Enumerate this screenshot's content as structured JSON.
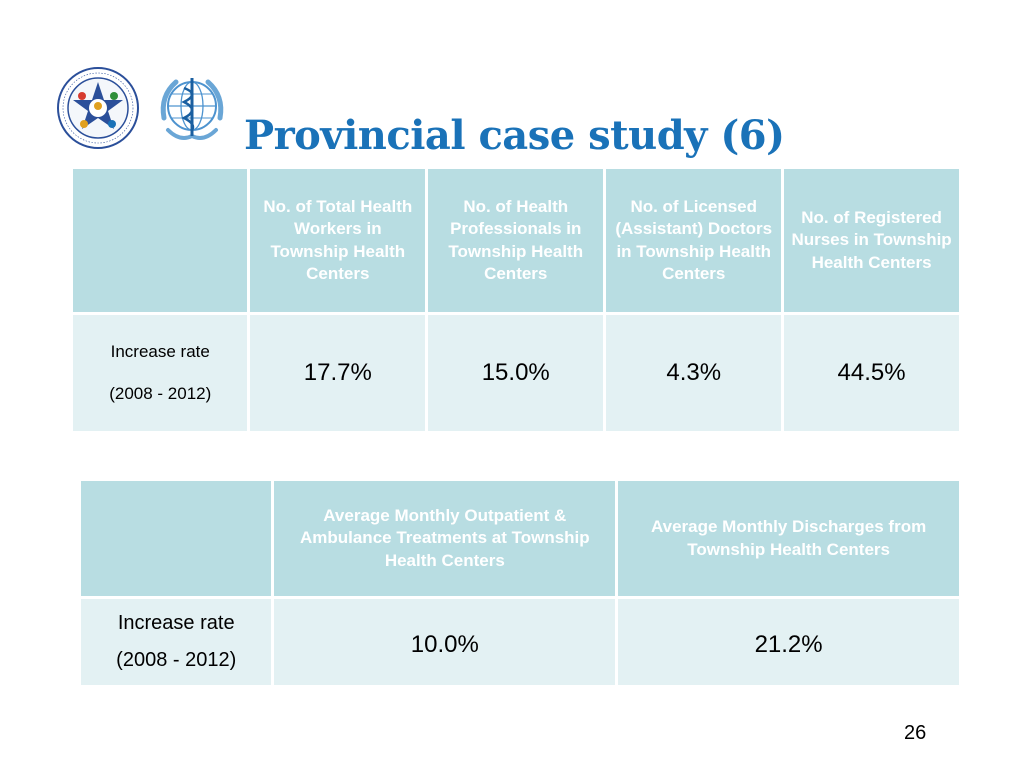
{
  "slide": {
    "title": "Provincial case study (6)",
    "page_number": "26"
  },
  "table1": {
    "headers": [
      "",
      "No. of Total Health Workers in Township Health Centers",
      "No. of Health Professionals in Township Health Centers",
      "No. of Licensed (Assistant) Doctors in Township Health Centers",
      "No. of Registered Nurses in Township Health Centers"
    ],
    "row_label_line1": "Increase rate",
    "row_label_line2": "(2008 - 2012)",
    "values": [
      "17.7%",
      "15.0%",
      "4.3%",
      "44.5%"
    ]
  },
  "table2": {
    "headers": [
      "",
      "Average Monthly Outpatient & Ambulance Treatments at Township Health Centers",
      "Average Monthly Discharges from Township Health Centers"
    ],
    "row_label_line1": "Increase rate",
    "row_label_line2": "(2008 - 2012)",
    "values": [
      "10.0%",
      "21.2%"
    ]
  },
  "colors": {
    "title": "#1a72b8",
    "header_bg": "#b8dde2",
    "cell_bg": "#e3f1f3"
  },
  "logos": [
    "health-talent-center-logo",
    "who-logo"
  ]
}
